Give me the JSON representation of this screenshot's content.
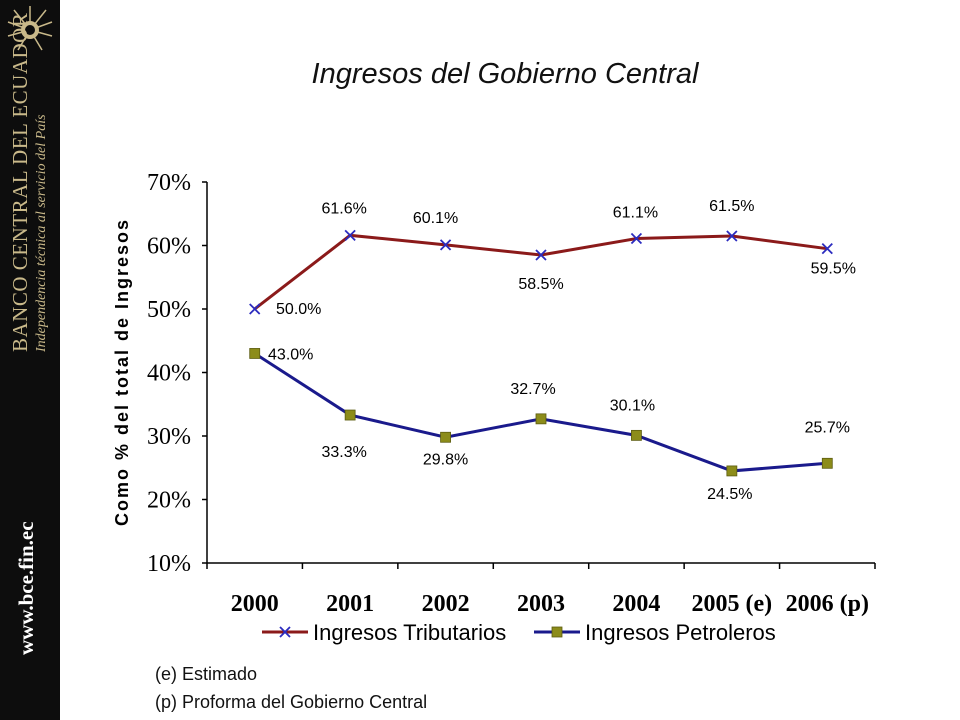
{
  "slide_title": "Ingresos del Gobierno Central",
  "sidebar": {
    "bank_name": "BANCO CENTRAL DEL ECUADOR",
    "tagline": "Independencia técnica al servicio del País",
    "website": "www.bce.fin.ec"
  },
  "notes": [
    "(e) Estimado",
    "(p) Proforma del Gobierno Central"
  ],
  "colors": {
    "tributarios": "#8b1a1a",
    "petroleros": "#1a1a8c",
    "marker_tributarios": "#2b2bbf",
    "marker_petroleros": "#8c8c1a",
    "sidebar": "#0d0d0d"
  },
  "chart_data": {
    "type": "line",
    "title": "",
    "ylabel": "Como % del total de Ingresos",
    "xlabel": "",
    "categories": [
      "2000",
      "2001",
      "2002",
      "2003",
      "2004",
      "2005 (e)",
      "2006 (p)"
    ],
    "ylim": [
      10,
      70
    ],
    "yticks": [
      "10%",
      "20%",
      "30%",
      "40%",
      "50%",
      "60%",
      "70%"
    ],
    "grid": false,
    "legend": "bottom",
    "series": [
      {
        "name": "Ingresos Tributarios",
        "values": [
          50.0,
          61.6,
          60.1,
          58.5,
          61.1,
          61.5,
          59.5
        ],
        "labels": [
          "50.0%",
          "61.6%",
          "60.1%",
          "58.5%",
          "61.1%",
          "61.5%",
          "59.5%"
        ],
        "marker": "x"
      },
      {
        "name": "Ingresos Petroleros",
        "values": [
          43.0,
          33.3,
          29.8,
          32.7,
          30.1,
          24.5,
          25.7
        ],
        "labels": [
          "43.0%",
          "33.3%",
          "29.8%",
          "32.7%",
          "30.1%",
          "24.5%",
          "25.7%"
        ],
        "marker": "square"
      }
    ]
  }
}
